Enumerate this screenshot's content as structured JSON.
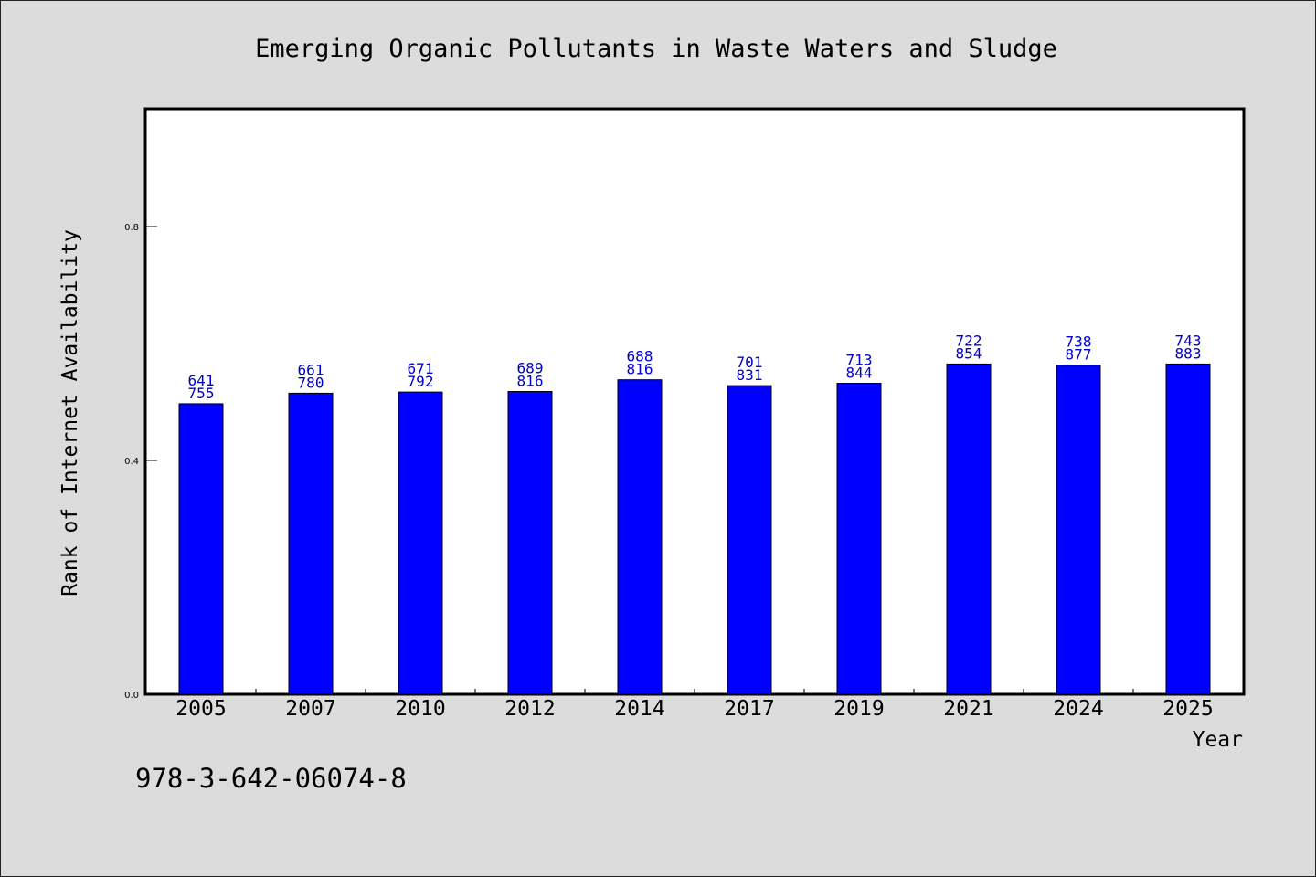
{
  "chart_data": {
    "type": "bar",
    "title": "Emerging Organic Pollutants in Waste Waters and Sludge",
    "xlabel": "Year",
    "ylabel": "Rank of Internet Availability",
    "categories": [
      "2005",
      "2007",
      "2010",
      "2012",
      "2014",
      "2017",
      "2019",
      "2021",
      "2024",
      "2025"
    ],
    "values": [
      0.497,
      0.515,
      0.517,
      0.518,
      0.538,
      0.528,
      0.532,
      0.565,
      0.563,
      0.565
    ],
    "label_top": [
      "641",
      "661",
      "671",
      "689",
      "688",
      "701",
      "713",
      "722",
      "738",
      "743"
    ],
    "label_bottom": [
      "755",
      "780",
      "792",
      "816",
      "816",
      "831",
      "844",
      "854",
      "877",
      "883"
    ],
    "ylim": [
      0,
      1.0
    ],
    "yticks": [
      0.0,
      0.4,
      0.8
    ],
    "ytick_labels": [
      "0.0",
      "0.4",
      "0.8"
    ],
    "grid": false,
    "bar_color": "#0000ff",
    "label_color": "#0000cc"
  },
  "footer": {
    "isbn": "978-3-642-06074-8"
  }
}
